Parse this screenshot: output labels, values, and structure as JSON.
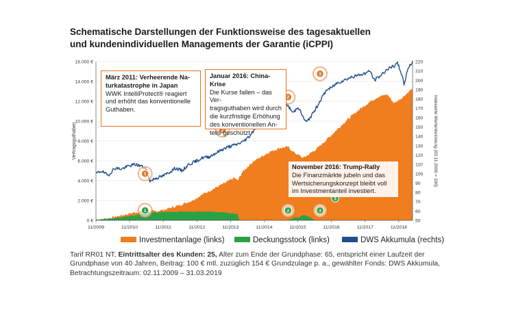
{
  "title": {
    "line1": "Schematische Darstellungen der Funktionsweise des tagesaktuellen",
    "line2": "und kundenindividuellen Managements der Garantie (iCPPI)"
  },
  "colors": {
    "investment": "#f07d1e",
    "deckungsstock": "#2aa146",
    "dws": "#1f4e8c",
    "accent": "#e8731d"
  },
  "callouts": {
    "c1": {
      "title": "März 2011: Verheerende Naturkatastrophe in Japan",
      "title_l1": "März 2011: Verheerende Na-",
      "title_l2": "turkatastrophe in Japan",
      "l1": "WWK IntelliProtect® reagiert",
      "l2": "und erhöht das konventionelle",
      "l3": "Guthaben."
    },
    "c2": {
      "title": "Januar 2016: China-Krise",
      "l1": "Die Kurse fallen – das Ver-",
      "l2": "tragsguthaben wird durch",
      "l3": "die kurzfristige Erhöhung",
      "l4": "des konventionellen An-",
      "l5": "teils geschützt."
    },
    "c3": {
      "title": "November 2016: Trump-Rally",
      "l1": "Die Finanzmärkte jubeln und das",
      "l2": "Wertsicherungskonzept bleibt voll",
      "l3": "im Investmentanteil investiert."
    }
  },
  "legend": {
    "investment": "Investmentanlage (links)",
    "deckungsstock": "Deckungsstock (links)",
    "dws": "DWS Akkumula (rechts)"
  },
  "footnote": {
    "prefix": "Tarif RR01 NT, ",
    "bold": "Eintrittsalter des Kunden: 25,",
    "rest": " Alter zum Ende der Grundphase: 65, entspricht einer Laufzeit der Grundphase von 40 Jahren, Beitrag: 100 € mtl. zuzüglich 154 € Grundzulage p. a., gewählter Fonds: DWS Akkumula, Betrachtungszeitraum: 02.11.2009 – 31.03.2019"
  },
  "chart_data": {
    "type": "area",
    "ylabel": "Vertragsguthaben",
    "y2label": "Indexierte Wertentwicklung (02.11.2009 = 100)",
    "xlim": [
      2009.84,
      2019.25
    ],
    "ylim": [
      0,
      16000
    ],
    "y2lim": [
      50,
      220
    ],
    "x_ticks": [
      {
        "x": 2009.84,
        "label": "11/2009"
      },
      {
        "x": 2010.84,
        "label": "11/2010"
      },
      {
        "x": 2011.84,
        "label": "11/2011"
      },
      {
        "x": 2012.84,
        "label": "11/2012"
      },
      {
        "x": 2013.84,
        "label": "11/2013"
      },
      {
        "x": 2014.84,
        "label": "11/2014"
      },
      {
        "x": 2015.84,
        "label": "11/2015"
      },
      {
        "x": 2016.84,
        "label": "11/2016"
      },
      {
        "x": 2017.84,
        "label": "11/2017"
      },
      {
        "x": 2018.84,
        "label": "11/2018"
      }
    ],
    "y_ticks": [
      {
        "v": 0,
        "label": "0 €"
      },
      {
        "v": 2000,
        "label": "2.000 €"
      },
      {
        "v": 4000,
        "label": "4.000 €"
      },
      {
        "v": 6000,
        "label": "6.000 €"
      },
      {
        "v": 8000,
        "label": "8.000 €"
      },
      {
        "v": 10000,
        "label": "10.000 €"
      },
      {
        "v": 12000,
        "label": "12.000 €"
      },
      {
        "v": 14000,
        "label": "14.000 €"
      },
      {
        "v": 16000,
        "label": "16.000 €"
      }
    ],
    "y2_ticks": [
      50,
      60,
      70,
      80,
      90,
      100,
      110,
      120,
      130,
      140,
      150,
      160,
      170,
      180,
      190,
      200,
      210,
      220
    ],
    "grid": true,
    "series": [
      {
        "name": "Investmentanlage (links)",
        "x": [
          2009.84,
          2010.2,
          2010.6,
          2011.0,
          2011.25,
          2011.6,
          2011.9,
          2012.3,
          2012.7,
          2013.0,
          2013.4,
          2013.7,
          2013.95,
          2014.05,
          2014.2,
          2014.35,
          2014.5,
          2014.7,
          2015.0,
          2015.3,
          2015.55,
          2015.7,
          2016.0,
          2016.1,
          2016.4,
          2016.84,
          2017.2,
          2017.6,
          2018.0,
          2018.2,
          2018.5,
          2018.7,
          2018.95,
          2019.25
        ],
        "values": [
          0,
          200,
          500,
          800,
          950,
          900,
          1100,
          1500,
          2000,
          2600,
          3300,
          3800,
          4300,
          4000,
          4900,
          5400,
          5900,
          6300,
          6900,
          7300,
          7400,
          6900,
          6300,
          6500,
          7200,
          8600,
          9800,
          11000,
          12000,
          12400,
          12700,
          11800,
          12400,
          13300
        ]
      },
      {
        "name": "Deckungsstock (links)",
        "x": [
          2009.84,
          2010.3,
          2010.7,
          2011.0,
          2011.25,
          2011.6,
          2012.0,
          2012.5,
          2013.0,
          2013.3,
          2013.6,
          2013.9,
          2014.05,
          2014.08,
          2014.1,
          2015.55,
          2015.65,
          2015.75,
          2015.85,
          2016.0,
          2016.1,
          2016.2,
          2016.35,
          2019.25
        ],
        "values": [
          60,
          200,
          350,
          500,
          700,
          800,
          850,
          880,
          880,
          860,
          820,
          700,
          600,
          300,
          0,
          0,
          150,
          300,
          250,
          550,
          450,
          350,
          0,
          0
        ]
      },
      {
        "name": "DWS Akkumula (rechts)",
        "x": [
          2009.84,
          2010.0,
          2010.2,
          2010.4,
          2010.6,
          2010.8,
          2011.0,
          2011.2,
          2011.35,
          2011.45,
          2011.6,
          2011.8,
          2012.0,
          2012.2,
          2012.4,
          2012.6,
          2012.8,
          2013.0,
          2013.2,
          2013.4,
          2013.6,
          2013.8,
          2014.0,
          2014.2,
          2014.4,
          2014.6,
          2014.8,
          2015.0,
          2015.2,
          2015.35,
          2015.5,
          2015.6,
          2015.7,
          2015.85,
          2016.0,
          2016.1,
          2016.3,
          2016.5,
          2016.7,
          2016.84,
          2017.0,
          2017.2,
          2017.4,
          2017.6,
          2017.8,
          2018.0,
          2018.1,
          2018.3,
          2018.5,
          2018.7,
          2018.8,
          2018.9,
          2019.0,
          2019.1,
          2019.25
        ],
        "values": [
          100,
          103,
          98,
          106,
          105,
          108,
          110,
          108,
          104,
          92,
          95,
          97,
          101,
          106,
          103,
          110,
          113,
          117,
          118,
          122,
          126,
          129,
          131,
          134,
          140,
          150,
          157,
          168,
          178,
          186,
          175,
          170,
          165,
          172,
          160,
          155,
          165,
          178,
          190,
          192,
          197,
          200,
          203,
          205,
          207,
          210,
          200,
          205,
          212,
          215,
          218,
          210,
          195,
          212,
          220
        ]
      }
    ],
    "markers": [
      {
        "label": "1",
        "x": 2011.3,
        "y2": 100,
        "ring": true
      },
      {
        "label": "1",
        "x": 2011.3,
        "v": 1000,
        "ring": true
      },
      {
        "label": "1",
        "x": 2011.3,
        "v": 9900,
        "ring": false
      },
      {
        "label": "2",
        "x": 2013.6,
        "v": 9100,
        "ring": true
      },
      {
        "label": "2",
        "x": 2015.55,
        "y2": 182,
        "ring": true
      },
      {
        "label": "2",
        "x": 2015.55,
        "v": 1000,
        "ring": true
      },
      {
        "label": "3",
        "x": 2016.5,
        "y2": 207,
        "ring": true
      },
      {
        "label": "3",
        "x": 2016.5,
        "v": 1000,
        "ring": true
      },
      {
        "label": "3",
        "x": 2016.95,
        "v": 2200,
        "ring": false
      }
    ]
  }
}
